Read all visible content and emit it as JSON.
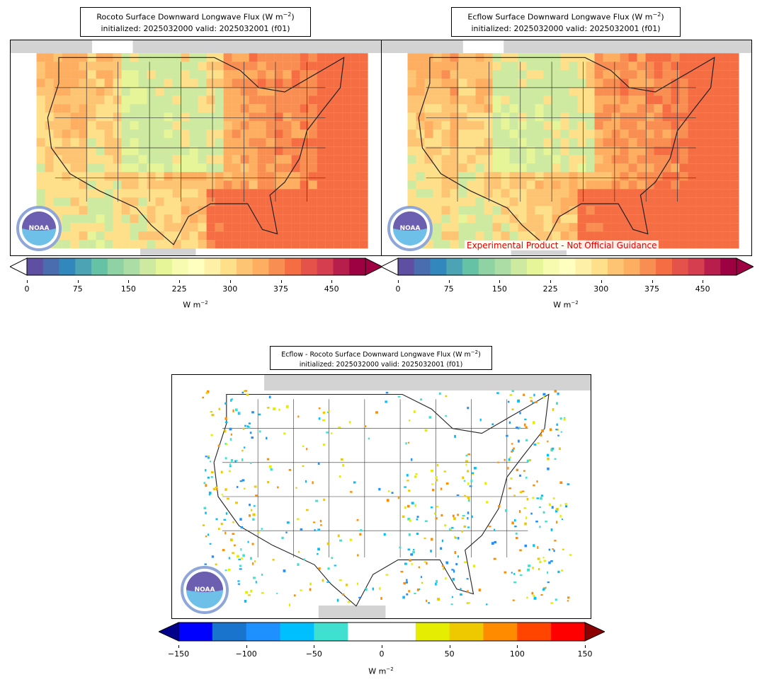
{
  "panels": {
    "left": {
      "title_line1": "Rocoto Surface Downward Longwave Flux (W m",
      "title_exp": "−2",
      "title_line1_end": ")",
      "title_line2": "initialized: 2025032000 valid: 2025032001 (f01)"
    },
    "right": {
      "title_line1": "Ecflow Surface Downward Longwave Flux (W m",
      "title_exp": "−2",
      "title_line1_end": ")",
      "title_line2": "initialized: 2025032000 valid: 2025032001 (f01)",
      "disclaimer": "Experimental Product - Not Official Guidance"
    },
    "diff": {
      "title_line1": "Ecflow - Rocoto Surface Downward Longwave Flux (W m",
      "title_exp": "−2",
      "title_line1_end": ")",
      "title_line2": "initialized: 2025032000 valid: 2025032001 (f01)"
    }
  },
  "colorbars": {
    "flux": {
      "ticks": [
        "0",
        "75",
        "150",
        "225",
        "300",
        "375",
        "450"
      ],
      "tick_values": [
        0,
        75,
        150,
        225,
        300,
        375,
        450
      ],
      "range": [
        0,
        500
      ],
      "unit": "W m",
      "unit_exp": "−2",
      "colors": [
        "#5e4fa2",
        "#4a6db0",
        "#3288bd",
        "#4ba3b4",
        "#66c2a5",
        "#8fd2a4",
        "#abdda4",
        "#cdeaa0",
        "#e6f598",
        "#f6fbb0",
        "#ffffbf",
        "#fff0a8",
        "#fee08b",
        "#fdc474",
        "#fdae61",
        "#f88e52",
        "#f46d43",
        "#e5524a",
        "#d53e4f",
        "#b81e4c",
        "#9e0142"
      ]
    },
    "diff": {
      "ticks": [
        "−150",
        "−100",
        "−50",
        "0",
        "50",
        "100",
        "150"
      ],
      "tick_values": [
        -150,
        -100,
        -50,
        0,
        50,
        100,
        150
      ],
      "range": [
        -150,
        150
      ],
      "unit": "W m",
      "unit_exp": "−2",
      "colors": [
        "#0000ff",
        "#1874cd",
        "#1e90ff",
        "#00bfff",
        "#40e0d0",
        "#ffffff",
        "#ffffff",
        "#e5ee00",
        "#eec900",
        "#ff8c00",
        "#ff4500",
        "#ff0000"
      ],
      "under_color": "#00008b",
      "over_color": "#8b0000"
    }
  },
  "logo": {
    "text": "NOAA"
  }
}
